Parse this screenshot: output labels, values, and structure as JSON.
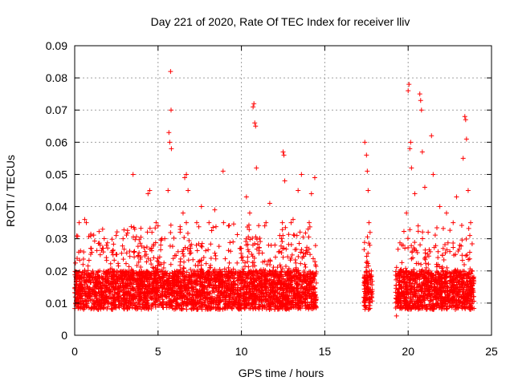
{
  "chart_data": {
    "type": "scatter",
    "title": "Day 221 of 2020, Rate Of TEC Index for receiver lliv",
    "xlabel": "GPS time / hours",
    "ylabel": "ROTI / TECUs",
    "xlim": [
      0,
      25
    ],
    "ylim": [
      0,
      0.09
    ],
    "xticks": [
      "0",
      "5",
      "10",
      "15",
      "20",
      "25"
    ],
    "yticks": [
      "0",
      "0.01",
      "0.02",
      "0.03",
      "0.04",
      "0.05",
      "0.06",
      "0.07",
      "0.08",
      "0.09"
    ],
    "grid": true,
    "marker": "+",
    "color": "#ff0000",
    "series": [
      {
        "points": [
          [
            0.1,
            0.014
          ],
          [
            0.3,
            0.018
          ],
          [
            0.5,
            0.022
          ],
          [
            0.6,
            0.036
          ],
          [
            0.7,
            0.035
          ],
          [
            0.8,
            0.012
          ],
          [
            1.0,
            0.027
          ],
          [
            1.2,
            0.015
          ],
          [
            1.5,
            0.02
          ],
          [
            1.8,
            0.011
          ],
          [
            2.0,
            0.017
          ],
          [
            2.3,
            0.025
          ],
          [
            2.6,
            0.013
          ],
          [
            2.9,
            0.03
          ],
          [
            3.2,
            0.016
          ],
          [
            3.5,
            0.05
          ],
          [
            3.6,
            0.033
          ],
          [
            3.9,
            0.012
          ],
          [
            4.2,
            0.019
          ],
          [
            4.4,
            0.044
          ],
          [
            4.5,
            0.045
          ],
          [
            4.8,
            0.014
          ],
          [
            5.1,
            0.022
          ],
          [
            5.4,
            0.03
          ],
          [
            5.6,
            0.045
          ],
          [
            5.65,
            0.063
          ],
          [
            5.7,
            0.06
          ],
          [
            5.75,
            0.082
          ],
          [
            5.78,
            0.07
          ],
          [
            5.8,
            0.058
          ],
          [
            5.9,
            0.018
          ],
          [
            6.2,
            0.026
          ],
          [
            6.5,
            0.038
          ],
          [
            6.6,
            0.049
          ],
          [
            6.7,
            0.05
          ],
          [
            6.8,
            0.045
          ],
          [
            7.0,
            0.016
          ],
          [
            7.3,
            0.028
          ],
          [
            7.6,
            0.04
          ],
          [
            7.8,
            0.012
          ],
          [
            8.1,
            0.021
          ],
          [
            8.4,
            0.039
          ],
          [
            8.7,
            0.015
          ],
          [
            8.9,
            0.051
          ],
          [
            9.2,
            0.018
          ],
          [
            9.5,
            0.029
          ],
          [
            9.8,
            0.013
          ],
          [
            10.0,
            0.027
          ],
          [
            10.3,
            0.043
          ],
          [
            10.5,
            0.038
          ],
          [
            10.7,
            0.071
          ],
          [
            10.75,
            0.072
          ],
          [
            10.8,
            0.066
          ],
          [
            10.85,
            0.065
          ],
          [
            10.9,
            0.052
          ],
          [
            11.1,
            0.02
          ],
          [
            11.4,
            0.034
          ],
          [
            11.7,
            0.041
          ],
          [
            12.0,
            0.015
          ],
          [
            12.3,
            0.031
          ],
          [
            12.5,
            0.057
          ],
          [
            12.55,
            0.056
          ],
          [
            12.6,
            0.048
          ],
          [
            12.8,
            0.019
          ],
          [
            13.1,
            0.036
          ],
          [
            13.4,
            0.045
          ],
          [
            13.6,
            0.05
          ],
          [
            13.8,
            0.022
          ],
          [
            14.0,
            0.033
          ],
          [
            14.2,
            0.044
          ],
          [
            14.4,
            0.049
          ],
          [
            14.45,
            0.009
          ],
          [
            17.4,
            0.06
          ],
          [
            17.5,
            0.056
          ],
          [
            17.55,
            0.051
          ],
          [
            17.6,
            0.045
          ],
          [
            17.65,
            0.035
          ],
          [
            17.7,
            0.028
          ],
          [
            17.75,
            0.018
          ],
          [
            17.8,
            0.012
          ],
          [
            19.3,
            0.006
          ],
          [
            19.5,
            0.017
          ],
          [
            19.7,
            0.028
          ],
          [
            19.9,
            0.038
          ],
          [
            20.0,
            0.076
          ],
          [
            20.05,
            0.078
          ],
          [
            20.1,
            0.058
          ],
          [
            20.15,
            0.06
          ],
          [
            20.2,
            0.052
          ],
          [
            20.4,
            0.044
          ],
          [
            20.6,
            0.034
          ],
          [
            20.7,
            0.075
          ],
          [
            20.75,
            0.073
          ],
          [
            20.8,
            0.07
          ],
          [
            20.85,
            0.057
          ],
          [
            21.0,
            0.046
          ],
          [
            21.2,
            0.032
          ],
          [
            21.4,
            0.062
          ],
          [
            21.5,
            0.05
          ],
          [
            21.7,
            0.022
          ],
          [
            21.9,
            0.04
          ],
          [
            22.1,
            0.027
          ],
          [
            22.3,
            0.038
          ],
          [
            22.5,
            0.018
          ],
          [
            22.7,
            0.035
          ],
          [
            22.9,
            0.043
          ],
          [
            23.1,
            0.028
          ],
          [
            23.3,
            0.055
          ],
          [
            23.4,
            0.068
          ],
          [
            23.45,
            0.067
          ],
          [
            23.5,
            0.061
          ],
          [
            23.6,
            0.045
          ],
          [
            23.7,
            0.031
          ],
          [
            23.8,
            0.02
          ],
          [
            23.9,
            0.012
          ]
        ]
      }
    ],
    "dense_band": {
      "ranges": [
        [
          0.0,
          14.5
        ],
        [
          17.35,
          17.85
        ],
        [
          19.25,
          23.95
        ]
      ],
      "y_range": [
        0.004,
        0.035
      ]
    }
  }
}
